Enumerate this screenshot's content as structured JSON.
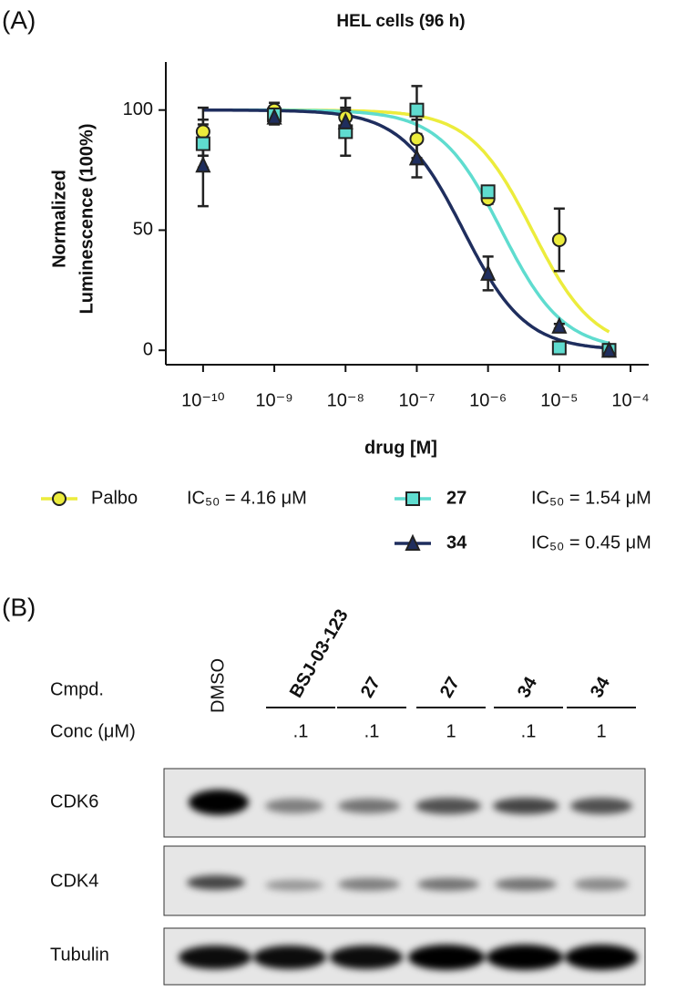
{
  "panel_a_label": "(A)",
  "chart_data": {
    "type": "scatter",
    "title": "HEL cells (96 h)",
    "xlabel": "drug [M]",
    "ylabel": [
      "Normalized",
      "Luminescence (100%)"
    ],
    "log_x": true,
    "x": [
      1e-10,
      1e-09,
      1e-08,
      1e-07,
      1e-06,
      1e-05,
      5e-05
    ],
    "xlim": [
      3e-11,
      0.00018
    ],
    "xticks": [
      {
        "value": 1e-10,
        "label": "10⁻¹⁰"
      },
      {
        "value": 1e-09,
        "label": "10⁻⁹"
      },
      {
        "value": 1e-08,
        "label": "10⁻⁸"
      },
      {
        "value": 1e-07,
        "label": "10⁻⁷"
      },
      {
        "value": 1e-06,
        "label": "10⁻⁶"
      },
      {
        "value": 1e-05,
        "label": "10⁻⁵"
      },
      {
        "value": 0.0001,
        "label": "10⁻⁴"
      }
    ],
    "ylim": [
      -6,
      120
    ],
    "yticks": [
      0,
      50,
      100
    ],
    "series": [
      {
        "name": "Palbo",
        "color": "#ecec3c",
        "marker": "circle",
        "bold": false,
        "values": [
          91,
          100,
          97,
          88,
          63,
          46,
          0
        ],
        "errors": [
          10,
          3,
          8,
          8,
          2,
          13,
          1
        ],
        "ic50": 4.16e-06,
        "ic50_label": "IC₅₀ = 4.16 μM"
      },
      {
        "name": "27",
        "color": "#5fdccf",
        "marker": "square",
        "bold": true,
        "values": [
          86,
          98,
          91,
          100,
          66,
          1,
          0
        ],
        "errors": [
          10,
          3,
          10,
          10,
          2,
          1,
          1
        ],
        "ic50": 1.54e-06,
        "ic50_label": "IC₅₀ = 1.54 μM"
      },
      {
        "name": "34",
        "color": "#1f2e5e",
        "marker": "triangle",
        "bold": true,
        "values": [
          77,
          97,
          95,
          80,
          32,
          10,
          0
        ],
        "errors": [
          17,
          3,
          5,
          8,
          7,
          1,
          1
        ],
        "ic50": 4.5e-07,
        "ic50_label": "IC₅₀ = 0.45 μM"
      }
    ]
  },
  "panel_b_label": "(B)",
  "blot": {
    "compound_label": "Cmpd.",
    "conc_label": "Conc (μM)",
    "lanes": [
      {
        "compound": "DMSO"
      },
      {
        "compound": "BSJ-03-123",
        "conc": ".1"
      },
      {
        "compound": "27",
        "conc": ".1"
      },
      {
        "compound": "27",
        "conc": "1"
      },
      {
        "compound": "34",
        "conc": ".1"
      },
      {
        "compound": "34",
        "conc": "1"
      }
    ],
    "rows": [
      "CDK6",
      "CDK4",
      "Tubulin"
    ]
  }
}
